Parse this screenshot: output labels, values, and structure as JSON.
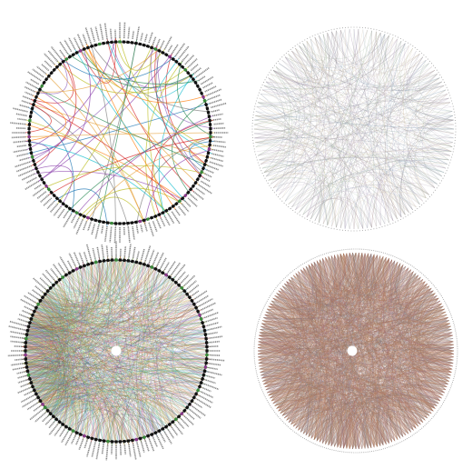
{
  "panels": [
    {
      "id": "top-left",
      "style": "labeled-sparse",
      "link_count": 70,
      "node_count": 140,
      "labels_visible": true,
      "center_dot": false,
      "palette": [
        "#2e8b57",
        "#e6a23c",
        "#8e44ad",
        "#1f77b4",
        "#d62728",
        "#17becf",
        "#bcbd22",
        "#7f7f7f",
        "#ff7f0e",
        "#9467bd"
      ]
    },
    {
      "id": "top-right",
      "style": "unlabeled-grey",
      "link_count": 420,
      "node_count": 140,
      "labels_visible": false,
      "center_dot": false,
      "palette": [
        "#9a8a9a",
        "#b5a8a0",
        "#8aa0b5",
        "#a0b59a",
        "#c0b0c8",
        "#7a7a8a",
        "#d0c0a0"
      ]
    },
    {
      "id": "bottom-left",
      "style": "labeled-dense",
      "link_count": 1400,
      "node_count": 140,
      "labels_visible": true,
      "center_dot": true,
      "palette": [
        "#3fd0c0",
        "#7fc050",
        "#c0a030",
        "#d05050",
        "#5070d0",
        "#b050c0",
        "#40a0a0",
        "#909030",
        "#e08040",
        "#2a2a2a"
      ]
    },
    {
      "id": "bottom-right",
      "style": "unlabeled-dense",
      "link_count": 2600,
      "node_count": 200,
      "labels_visible": false,
      "center_dot": true,
      "palette": [
        "#b06a50",
        "#a07050",
        "#c08060",
        "#8a6a6a",
        "#9a7a5a",
        "#b58a6a",
        "#7a8a9a",
        "#a06a80"
      ]
    }
  ]
}
